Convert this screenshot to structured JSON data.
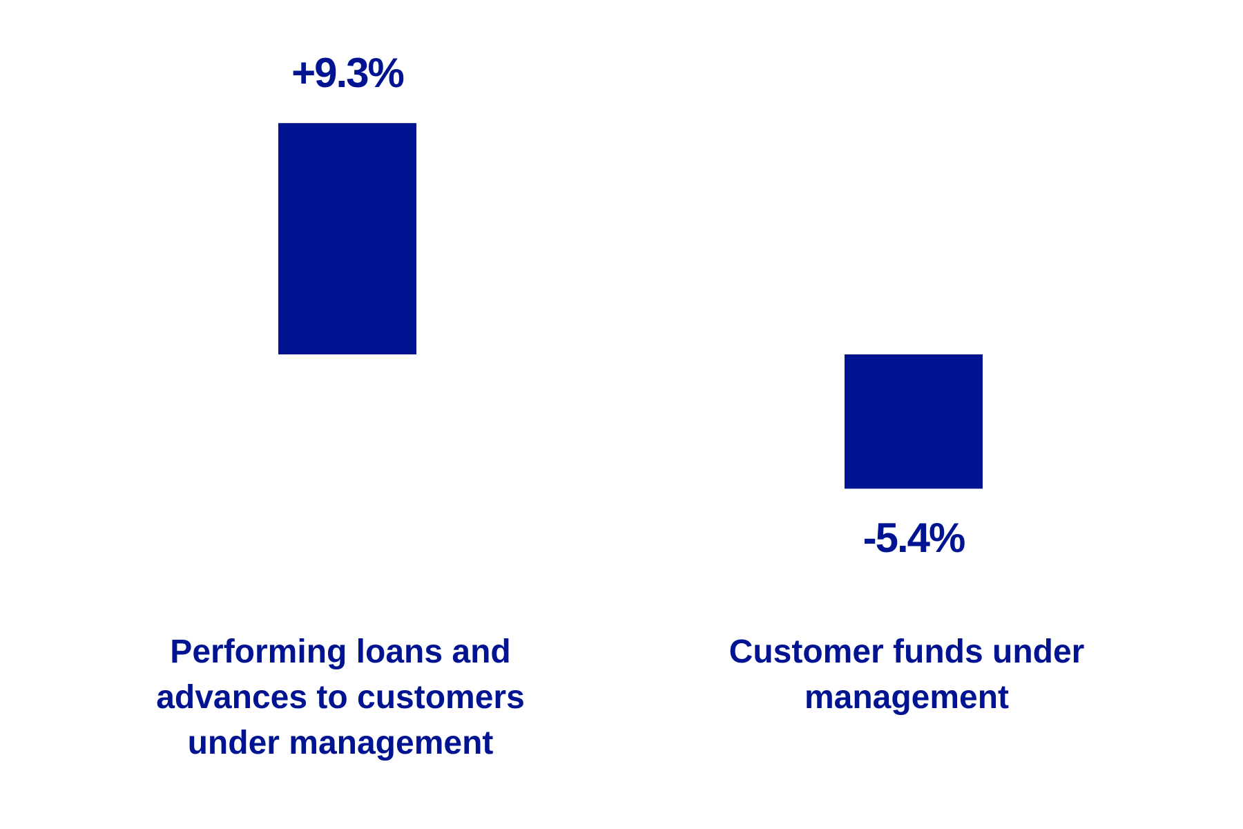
{
  "chart_data": {
    "type": "bar",
    "categories": [
      "Performing loans and advances to customers under management",
      "Customer funds under management"
    ],
    "values": [
      9.3,
      -5.4
    ],
    "value_labels": [
      "+9.3%",
      "-5.4%"
    ],
    "color": "#001391"
  }
}
